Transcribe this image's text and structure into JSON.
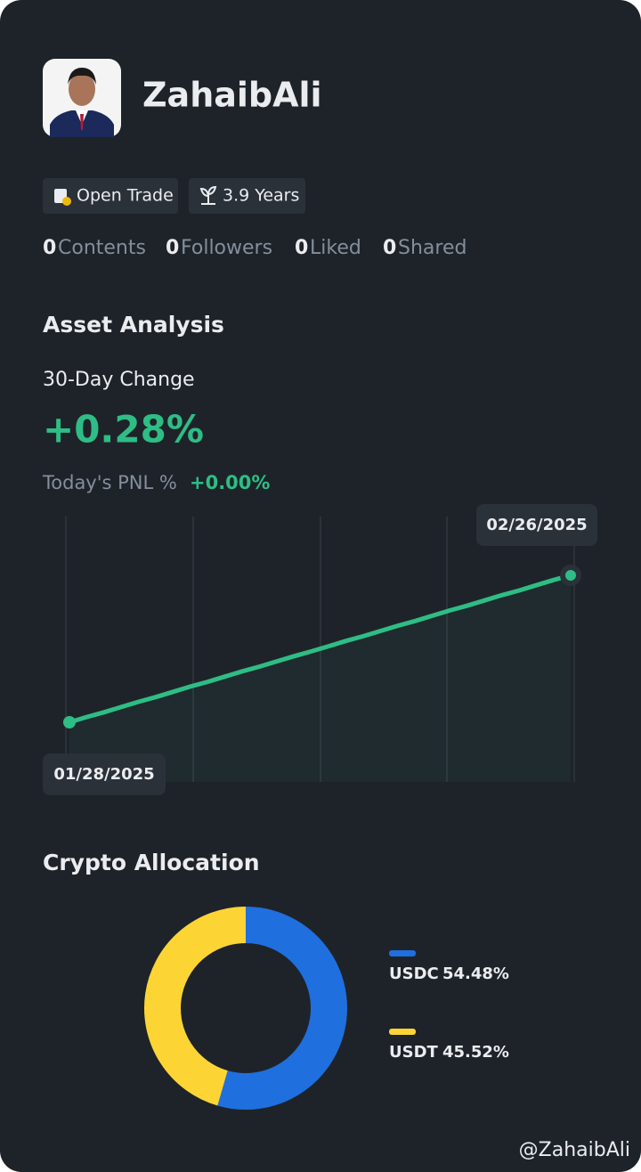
{
  "profile": {
    "name": "ZahaibAli",
    "badges": [
      "Open Trade",
      "3.9 Years"
    ],
    "stats": [
      {
        "count": 0,
        "label": "Contents"
      },
      {
        "count": 0,
        "label": "Followers"
      },
      {
        "count": 0,
        "label": "Liked"
      },
      {
        "count": 0,
        "label": "Shared"
      }
    ]
  },
  "asset_analysis": {
    "title": "Asset Analysis",
    "change_label": "30-Day Change",
    "change": "+0.28%",
    "pnl_label": "Today's PNL %",
    "pnl": "+0.00%"
  },
  "chart_data": [
    {
      "type": "line",
      "x": [
        "01/28/2025",
        null,
        null,
        null,
        null,
        null,
        null,
        null,
        null,
        null,
        null,
        null,
        null,
        null,
        null,
        null,
        null,
        null,
        null,
        null,
        null,
        null,
        null,
        null,
        null,
        null,
        null,
        null,
        null,
        "02/26/2025"
      ],
      "values": [
        0.0,
        0.01,
        0.019,
        0.029,
        0.039,
        0.048,
        0.058,
        0.068,
        0.077,
        0.087,
        0.097,
        0.106,
        0.116,
        0.126,
        0.135,
        0.145,
        0.155,
        0.164,
        0.174,
        0.184,
        0.193,
        0.203,
        0.213,
        0.222,
        0.232,
        0.242,
        0.251,
        0.261,
        0.271,
        0.28
      ],
      "color": "#2ebd85"
    },
    {
      "type": "pie",
      "title": "Crypto Allocation",
      "categories": [
        "USDC",
        "USDT"
      ],
      "values": [
        54.48,
        45.52
      ],
      "value_labels": [
        "54.48%",
        "45.52%"
      ],
      "colors": [
        "#1f6fde",
        "#fcd535"
      ]
    }
  ],
  "watermark": "@ZahaibAli"
}
